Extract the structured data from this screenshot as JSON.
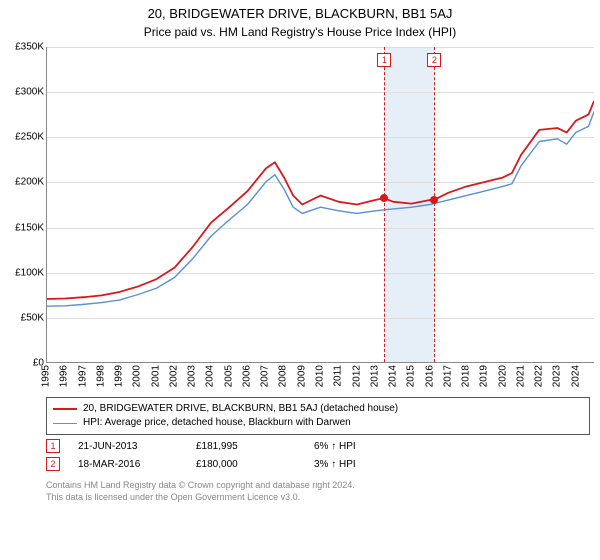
{
  "titles": {
    "main": "20, BRIDGEWATER DRIVE, BLACKBURN, BB1 5AJ",
    "sub": "Price paid vs. HM Land Registry's House Price Index (HPI)"
  },
  "chart": {
    "type": "line",
    "xlim": [
      1995,
      2025
    ],
    "ylim": [
      0,
      350000
    ],
    "ytick_step": 50000,
    "yticks": [
      "£0",
      "£50K",
      "£100K",
      "£150K",
      "£200K",
      "£250K",
      "£300K",
      "£350K"
    ],
    "xticks": [
      "1995",
      "1996",
      "1997",
      "1998",
      "1999",
      "2000",
      "2001",
      "2002",
      "2003",
      "2004",
      "2005",
      "2006",
      "2007",
      "2008",
      "2009",
      "2010",
      "2011",
      "2012",
      "2013",
      "2014",
      "2015",
      "2016",
      "2017",
      "2018",
      "2019",
      "2020",
      "2021",
      "2022",
      "2023",
      "2024"
    ],
    "grid_color": "#dddddd",
    "background_color": "#ffffff",
    "band": {
      "start": 2013.47,
      "end": 2016.21,
      "color": "#e6eef7"
    },
    "vlines": [
      {
        "x": 2013.47,
        "color": "#d7191c",
        "label": "1"
      },
      {
        "x": 2016.21,
        "color": "#d7191c",
        "label": "2"
      }
    ],
    "series": [
      {
        "name": "price",
        "color": "#d7191c",
        "width": 1.8,
        "points": [
          [
            1995,
            70000
          ],
          [
            1996,
            70500
          ],
          [
            1997,
            72000
          ],
          [
            1998,
            74000
          ],
          [
            1999,
            78000
          ],
          [
            2000,
            84000
          ],
          [
            2001,
            92000
          ],
          [
            2002,
            105000
          ],
          [
            2003,
            128000
          ],
          [
            2004,
            155000
          ],
          [
            2005,
            172000
          ],
          [
            2006,
            190000
          ],
          [
            2007,
            215000
          ],
          [
            2007.5,
            222000
          ],
          [
            2008,
            205000
          ],
          [
            2008.5,
            185000
          ],
          [
            2009,
            175000
          ],
          [
            2010,
            185000
          ],
          [
            2011,
            178000
          ],
          [
            2012,
            175000
          ],
          [
            2013,
            180000
          ],
          [
            2013.47,
            181995
          ],
          [
            2014,
            178000
          ],
          [
            2015,
            176000
          ],
          [
            2016,
            180000
          ],
          [
            2016.21,
            180000
          ],
          [
            2017,
            188000
          ],
          [
            2018,
            195000
          ],
          [
            2019,
            200000
          ],
          [
            2020,
            205000
          ],
          [
            2020.5,
            210000
          ],
          [
            2021,
            230000
          ],
          [
            2022,
            258000
          ],
          [
            2023,
            260000
          ],
          [
            2023.5,
            255000
          ],
          [
            2024,
            268000
          ],
          [
            2024.7,
            275000
          ],
          [
            2025,
            290000
          ]
        ]
      },
      {
        "name": "hpi",
        "color": "#5b8fd6",
        "width": 1.4,
        "points": [
          [
            1995,
            62000
          ],
          [
            1996,
            62500
          ],
          [
            1997,
            64000
          ],
          [
            1998,
            66000
          ],
          [
            1999,
            69000
          ],
          [
            2000,
            75000
          ],
          [
            2001,
            82000
          ],
          [
            2002,
            94000
          ],
          [
            2003,
            115000
          ],
          [
            2004,
            140000
          ],
          [
            2005,
            158000
          ],
          [
            2006,
            175000
          ],
          [
            2007,
            200000
          ],
          [
            2007.5,
            208000
          ],
          [
            2008,
            192000
          ],
          [
            2008.5,
            172000
          ],
          [
            2009,
            165000
          ],
          [
            2010,
            172000
          ],
          [
            2011,
            168000
          ],
          [
            2012,
            165000
          ],
          [
            2013,
            168000
          ],
          [
            2014,
            170000
          ],
          [
            2015,
            172000
          ],
          [
            2016,
            175000
          ],
          [
            2017,
            180000
          ],
          [
            2018,
            185000
          ],
          [
            2019,
            190000
          ],
          [
            2020,
            195000
          ],
          [
            2020.5,
            198000
          ],
          [
            2021,
            218000
          ],
          [
            2022,
            245000
          ],
          [
            2023,
            248000
          ],
          [
            2023.5,
            242000
          ],
          [
            2024,
            255000
          ],
          [
            2024.7,
            262000
          ],
          [
            2025,
            278000
          ]
        ]
      }
    ],
    "sale_markers": [
      {
        "x": 2013.47,
        "y": 181995
      },
      {
        "x": 2016.21,
        "y": 180000
      }
    ]
  },
  "legend": {
    "items": [
      {
        "color": "#d7191c",
        "width": 2,
        "label": "20, BRIDGEWATER DRIVE, BLACKBURN, BB1 5AJ (detached house)"
      },
      {
        "color": "#5b8fd6",
        "width": 1,
        "label": "HPI: Average price, detached house, Blackburn with Darwen"
      }
    ]
  },
  "sales": [
    {
      "badge": "1",
      "date": "21-JUN-2013",
      "price": "£181,995",
      "delta": "6% ↑ HPI"
    },
    {
      "badge": "2",
      "date": "18-MAR-2016",
      "price": "£180,000",
      "delta": "3% ↑ HPI"
    }
  ],
  "footer": {
    "line1": "Contains HM Land Registry data © Crown copyright and database right 2024.",
    "line2": "This data is licensed under the Open Government Licence v3.0."
  }
}
